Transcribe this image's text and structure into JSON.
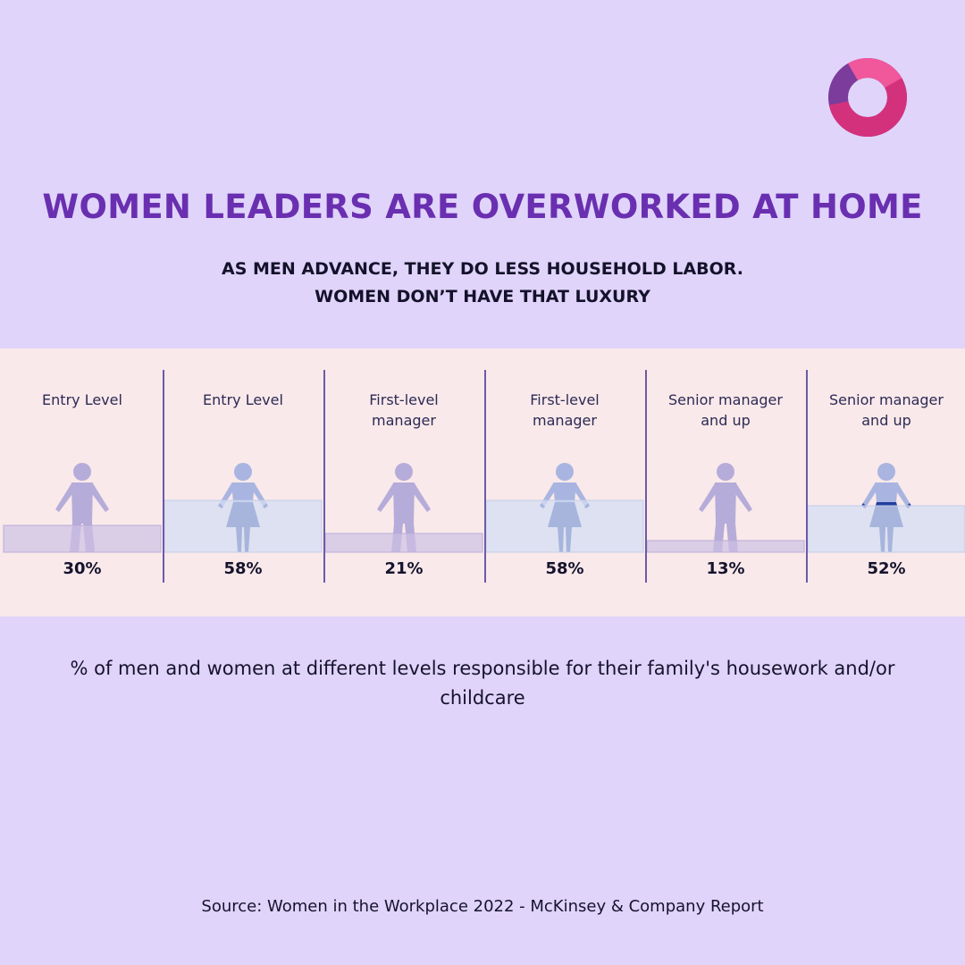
{
  "logo": {
    "icon": "ring-logo-icon",
    "colors": [
      "#f1579b",
      "#d4317c",
      "#7b3c9b"
    ]
  },
  "header": {
    "title": "WOMEN LEADERS ARE OVERWORKED AT HOME",
    "subtitle_line1": "AS MEN ADVANCE, THEY DO LESS HOUSEHOLD LABOR.",
    "subtitle_line2": "WOMEN DON’T HAVE THAT LUXURY"
  },
  "chart_data": {
    "type": "bar",
    "ylim": [
      0,
      100
    ],
    "columns": [
      {
        "gender": "men",
        "label": [
          "Entry Level"
        ],
        "value": 30,
        "display": "30%"
      },
      {
        "gender": "women",
        "label": [
          "Entry Level"
        ],
        "value": 58,
        "display": "58%"
      },
      {
        "gender": "men",
        "label": [
          "First-level",
          "manager"
        ],
        "value": 21,
        "display": "21%"
      },
      {
        "gender": "women",
        "label": [
          "First-level",
          "manager"
        ],
        "value": 58,
        "display": "58%"
      },
      {
        "gender": "men",
        "label": [
          "Senior manager",
          "and up"
        ],
        "value": 13,
        "display": "13%"
      },
      {
        "gender": "women",
        "label": [
          "Senior manager",
          "and up"
        ],
        "value": 52,
        "display": "52%"
      }
    ],
    "colors": {
      "men_bar": "#cdc0e4",
      "women_bar": "#d4ddf3",
      "men_figure": "#b6acd9",
      "women_skirt": "#233f9c",
      "women_upper": "#a9b5e0",
      "divider": "#6c5aa8"
    }
  },
  "caption": "% of men and women at different levels responsible for their family's housework and/or childcare",
  "source": "Source: Women in the Workplace 2022 - McKinsey & Company Report"
}
